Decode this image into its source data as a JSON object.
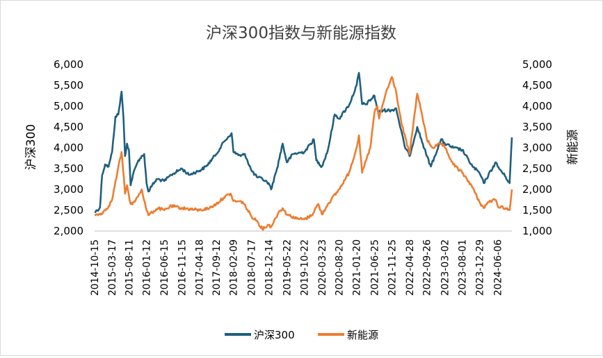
{
  "chart_data": {
    "type": "line",
    "title": "沪深300指数与新能源指数",
    "ylabel": "沪深300",
    "y2label": "新能源",
    "ylim": [
      2000,
      6000
    ],
    "y2lim": [
      1000,
      5000
    ],
    "y_ticks": [
      "2,000",
      "2,500",
      "3,000",
      "3,500",
      "4,000",
      "4,500",
      "5,000",
      "5,500",
      "6,000"
    ],
    "y2_ticks": [
      "1,000",
      "1,500",
      "2,000",
      "2,500",
      "3,000",
      "3,500",
      "4,000",
      "4,500",
      "5,000"
    ],
    "x_ticks": [
      "2014-10-15",
      "2015-03-17",
      "2015-08-11",
      "2016-01-12",
      "2016-06-15",
      "2016-11-15",
      "2017-04-18",
      "2017-09-12",
      "2018-02-09",
      "2018-07-17",
      "2018-12-14",
      "2019-05-22",
      "2019-10-22",
      "2020-03-23",
      "2020-08-20",
      "2021-01-20",
      "2021-06-25",
      "2021-11-25",
      "2022-04-28",
      "2022-09-26",
      "2023-03-02",
      "2023-08-01",
      "2023-12-29",
      "2024-06-06"
    ],
    "legend_position": "bottom",
    "grid": false,
    "series": [
      {
        "name": "沪深300",
        "axis": "left",
        "color": "#1F5F7F",
        "points": [
          [
            "2014-10-15",
            2450
          ],
          [
            "2014-12-01",
            2560
          ],
          [
            "2014-12-20",
            3350
          ],
          [
            "2015-01-15",
            3600
          ],
          [
            "2015-02-15",
            3550
          ],
          [
            "2015-03-17",
            3900
          ],
          [
            "2015-04-15",
            4750
          ],
          [
            "2015-05-10",
            4800
          ],
          [
            "2015-06-08",
            5350
          ],
          [
            "2015-06-25",
            4700
          ],
          [
            "2015-07-08",
            3800
          ],
          [
            "2015-07-25",
            4100
          ],
          [
            "2015-08-11",
            3950
          ],
          [
            "2015-08-26",
            3100
          ],
          [
            "2015-09-15",
            3350
          ],
          [
            "2015-11-01",
            3700
          ],
          [
            "2015-12-22",
            3850
          ],
          [
            "2016-01-12",
            3150
          ],
          [
            "2016-01-28",
            2950
          ],
          [
            "2016-03-01",
            3100
          ],
          [
            "2016-04-15",
            3250
          ],
          [
            "2016-06-15",
            3200
          ],
          [
            "2016-08-15",
            3350
          ],
          [
            "2016-11-15",
            3500
          ],
          [
            "2017-01-15",
            3350
          ],
          [
            "2017-04-18",
            3450
          ],
          [
            "2017-06-15",
            3550
          ],
          [
            "2017-09-12",
            3850
          ],
          [
            "2017-11-20",
            4150
          ],
          [
            "2018-01-24",
            4350
          ],
          [
            "2018-02-09",
            3900
          ],
          [
            "2018-04-15",
            3800
          ],
          [
            "2018-05-20",
            3850
          ],
          [
            "2018-07-17",
            3450
          ],
          [
            "2018-09-01",
            3300
          ],
          [
            "2018-10-20",
            3250
          ],
          [
            "2018-12-14",
            3150
          ],
          [
            "2019-01-04",
            3000
          ],
          [
            "2019-02-25",
            3500
          ],
          [
            "2019-04-15",
            4100
          ],
          [
            "2019-05-22",
            3650
          ],
          [
            "2019-07-15",
            3850
          ],
          [
            "2019-10-22",
            3900
          ],
          [
            "2020-01-13",
            4200
          ],
          [
            "2020-02-03",
            3700
          ],
          [
            "2020-03-23",
            3550
          ],
          [
            "2020-05-15",
            3950
          ],
          [
            "2020-07-13",
            4800
          ],
          [
            "2020-08-20",
            4700
          ],
          [
            "2020-11-20",
            5050
          ],
          [
            "2021-01-20",
            5500
          ],
          [
            "2021-02-10",
            5800
          ],
          [
            "2021-03-09",
            5050
          ],
          [
            "2021-04-15",
            5050
          ],
          [
            "2021-06-25",
            5250
          ],
          [
            "2021-07-28",
            4850
          ],
          [
            "2021-09-15",
            4900
          ],
          [
            "2021-11-25",
            4900
          ],
          [
            "2021-12-31",
            4950
          ],
          [
            "2022-03-15",
            4050
          ],
          [
            "2022-04-28",
            3800
          ],
          [
            "2022-07-04",
            4500
          ],
          [
            "2022-09-26",
            3800
          ],
          [
            "2022-10-31",
            3550
          ],
          [
            "2023-01-28",
            4200
          ],
          [
            "2023-03-02",
            4100
          ],
          [
            "2023-05-15",
            4000
          ],
          [
            "2023-08-01",
            3950
          ],
          [
            "2023-10-30",
            3550
          ],
          [
            "2023-12-29",
            3400
          ],
          [
            "2024-02-05",
            3150
          ],
          [
            "2024-05-20",
            3650
          ],
          [
            "2024-06-06",
            3550
          ],
          [
            "2024-08-15",
            3300
          ],
          [
            "2024-09-18",
            3150
          ],
          [
            "2024-10-08",
            4250
          ]
        ]
      },
      {
        "name": "新能源",
        "axis": "right",
        "color": "#ED7D31",
        "points": [
          [
            "2014-10-15",
            1380
          ],
          [
            "2014-12-15",
            1420
          ],
          [
            "2015-02-15",
            1600
          ],
          [
            "2015-03-17",
            1750
          ],
          [
            "2015-05-01",
            2400
          ],
          [
            "2015-06-08",
            2900
          ],
          [
            "2015-06-20",
            2500
          ],
          [
            "2015-07-08",
            1900
          ],
          [
            "2015-07-25",
            2100
          ],
          [
            "2015-08-11",
            1850
          ],
          [
            "2015-08-26",
            1650
          ],
          [
            "2015-10-01",
            1700
          ],
          [
            "2015-12-01",
            2000
          ],
          [
            "2016-01-12",
            1500
          ],
          [
            "2016-01-28",
            1380
          ],
          [
            "2016-03-01",
            1450
          ],
          [
            "2016-04-20",
            1550
          ],
          [
            "2016-06-15",
            1500
          ],
          [
            "2016-08-15",
            1600
          ],
          [
            "2016-11-15",
            1550
          ],
          [
            "2017-04-18",
            1500
          ],
          [
            "2017-07-15",
            1550
          ],
          [
            "2017-09-12",
            1650
          ],
          [
            "2017-11-15",
            1800
          ],
          [
            "2018-01-15",
            1900
          ],
          [
            "2018-02-09",
            1720
          ],
          [
            "2018-05-01",
            1700
          ],
          [
            "2018-07-17",
            1350
          ],
          [
            "2018-09-01",
            1250
          ],
          [
            "2018-10-19",
            1050
          ],
          [
            "2018-12-14",
            1150
          ],
          [
            "2019-01-04",
            1100
          ],
          [
            "2019-03-10",
            1450
          ],
          [
            "2019-04-15",
            1550
          ],
          [
            "2019-05-22",
            1400
          ],
          [
            "2019-08-15",
            1300
          ],
          [
            "2019-10-22",
            1280
          ],
          [
            "2019-12-25",
            1380
          ],
          [
            "2020-02-20",
            1650
          ],
          [
            "2020-03-23",
            1400
          ],
          [
            "2020-05-15",
            1650
          ],
          [
            "2020-08-20",
            2000
          ],
          [
            "2020-11-15",
            2400
          ],
          [
            "2021-01-20",
            3000
          ],
          [
            "2021-02-10",
            3300
          ],
          [
            "2021-03-09",
            2400
          ],
          [
            "2021-05-20",
            3000
          ],
          [
            "2021-06-25",
            3850
          ],
          [
            "2021-07-20",
            4000
          ],
          [
            "2021-08-05",
            3700
          ],
          [
            "2021-10-01",
            4300
          ],
          [
            "2021-11-25",
            4700
          ],
          [
            "2021-12-31",
            4350
          ],
          [
            "2022-02-15",
            3600
          ],
          [
            "2022-04-28",
            2850
          ],
          [
            "2022-06-01",
            3600
          ],
          [
            "2022-07-04",
            4300
          ],
          [
            "2022-08-15",
            3800
          ],
          [
            "2022-09-26",
            3200
          ],
          [
            "2022-11-15",
            3000
          ],
          [
            "2023-01-28",
            3100
          ],
          [
            "2023-03-02",
            3000
          ],
          [
            "2023-05-15",
            2600
          ],
          [
            "2023-08-01",
            2400
          ],
          [
            "2023-10-20",
            2100
          ],
          [
            "2023-12-29",
            1700
          ],
          [
            "2024-02-05",
            1550
          ],
          [
            "2024-03-15",
            1700
          ],
          [
            "2024-05-20",
            1750
          ],
          [
            "2024-06-06",
            1600
          ],
          [
            "2024-08-15",
            1550
          ],
          [
            "2024-09-18",
            1500
          ],
          [
            "2024-10-08",
            2000
          ]
        ]
      }
    ]
  }
}
